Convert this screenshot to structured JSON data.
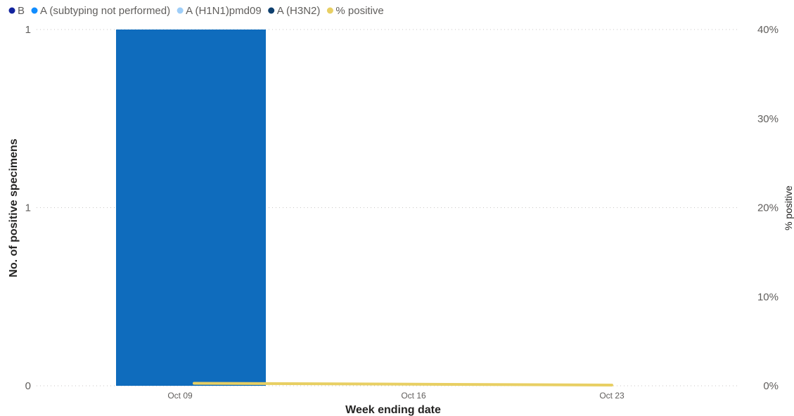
{
  "chart_data": {
    "type": "bar",
    "legend_position": "top-left",
    "x_label": "Week ending date",
    "y_label": "No. of positive specimens",
    "y2_label": "% positive",
    "categories": [
      "Oct 09",
      "Oct 16",
      "Oct 23"
    ],
    "y_ticks": [
      "0",
      "1",
      "1"
    ],
    "y_range": [
      0,
      2
    ],
    "y2_ticks": [
      "0%",
      "10%",
      "20%",
      "30%",
      "40%"
    ],
    "y2_range": [
      0,
      40
    ],
    "grid": true,
    "series": [
      {
        "name": "B",
        "kind": "bar",
        "color": "#12239e",
        "values": [
          0,
          0,
          0
        ]
      },
      {
        "name": "A (subtyping not performed)",
        "kind": "bar",
        "color": "#118dff",
        "values": [
          2,
          0,
          0
        ]
      },
      {
        "name": "A (H1N1)pmd09",
        "kind": "bar",
        "color": "#9fcef8",
        "values": [
          0,
          0,
          0
        ]
      },
      {
        "name": "A (H3N2)",
        "kind": "bar",
        "color": "#0e3f6e",
        "values": [
          0,
          0,
          0
        ]
      },
      {
        "name": "% positive",
        "kind": "line",
        "axis": "right",
        "color": "#e8cf63",
        "values": [
          0.2,
          0.1,
          0.0
        ]
      }
    ]
  }
}
